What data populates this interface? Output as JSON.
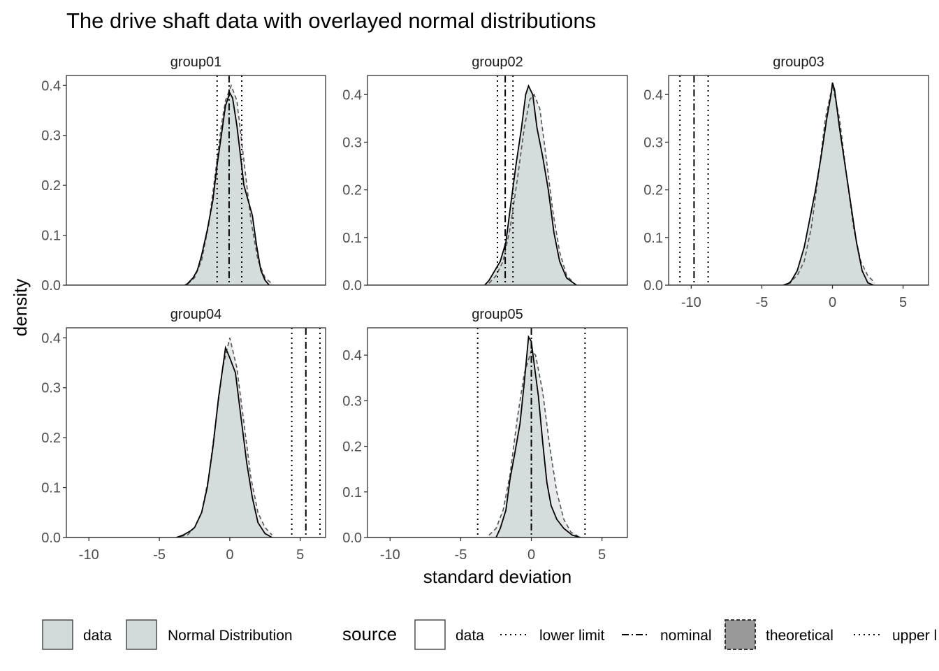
{
  "chart_data": {
    "type": "area",
    "title": "The drive shaft data with overlayed normal distributions",
    "xlabel": "standard deviation",
    "ylabel": "density",
    "xlim": [
      -11.6,
      6.8
    ],
    "x_ticks": [
      -10,
      -5,
      0,
      5
    ],
    "grid": false,
    "legend_position": "bottom",
    "colors": {
      "fill": "#d1d9d9",
      "data_line": "#000000",
      "theoretical_line": "#555555",
      "theoretical_fill": "#999999",
      "panel_border": "#333333",
      "tick_text": "#4d4d4d"
    },
    "panels": [
      {
        "name": "group01",
        "ylim": [
          0,
          0.42
        ],
        "y_ticks": [
          0.0,
          0.1,
          0.2,
          0.3,
          0.4
        ],
        "y_tick_labels": [
          "0.0",
          "0.1",
          "0.2",
          "0.3",
          "0.4"
        ],
        "lower_limit": -0.9,
        "nominal": -0.05,
        "upper_limit": 0.85,
        "data_curve": [
          [
            -3.2,
            0
          ],
          [
            -3.0,
            0.003
          ],
          [
            -2.6,
            0.015
          ],
          [
            -2.3,
            0.03
          ],
          [
            -2.0,
            0.06
          ],
          [
            -1.6,
            0.11
          ],
          [
            -1.2,
            0.17
          ],
          [
            -0.9,
            0.24
          ],
          [
            -0.6,
            0.3
          ],
          [
            -0.3,
            0.36
          ],
          [
            0,
            0.385
          ],
          [
            0.2,
            0.375
          ],
          [
            0.5,
            0.32
          ],
          [
            0.8,
            0.25
          ],
          [
            1.0,
            0.2
          ],
          [
            1.3,
            0.17
          ],
          [
            1.6,
            0.14
          ],
          [
            1.9,
            0.08
          ],
          [
            2.2,
            0.03
          ],
          [
            2.5,
            0.01
          ],
          [
            2.8,
            0.0
          ]
        ],
        "theoretical_curve": [
          [
            -3.0,
            0.002
          ],
          [
            -2.5,
            0.015
          ],
          [
            -2.0,
            0.05
          ],
          [
            -1.5,
            0.12
          ],
          [
            -1.0,
            0.23
          ],
          [
            -0.6,
            0.32
          ],
          [
            -0.3,
            0.37
          ],
          [
            0.1,
            0.4
          ],
          [
            0.5,
            0.37
          ],
          [
            1.0,
            0.25
          ],
          [
            1.5,
            0.13
          ],
          [
            2.0,
            0.05
          ],
          [
            2.5,
            0.015
          ],
          [
            3.0,
            0.003
          ]
        ]
      },
      {
        "name": "group02",
        "ylim": [
          0,
          0.44
        ],
        "y_ticks": [
          0.0,
          0.1,
          0.2,
          0.3,
          0.4
        ],
        "y_tick_labels": [
          "0.0",
          "0.1",
          "0.2",
          "0.3",
          "0.4"
        ],
        "lower_limit": -2.4,
        "nominal": -1.85,
        "upper_limit": -1.3,
        "data_curve": [
          [
            -3.3,
            0
          ],
          [
            -3.0,
            0.01
          ],
          [
            -2.6,
            0.03
          ],
          [
            -2.2,
            0.05
          ],
          [
            -1.8,
            0.09
          ],
          [
            -1.5,
            0.16
          ],
          [
            -1.1,
            0.25
          ],
          [
            -0.7,
            0.33
          ],
          [
            -0.4,
            0.4
          ],
          [
            -0.2,
            0.418
          ],
          [
            0.1,
            0.4
          ],
          [
            0.4,
            0.33
          ],
          [
            0.8,
            0.27
          ],
          [
            1.2,
            0.2
          ],
          [
            1.6,
            0.11
          ],
          [
            2.0,
            0.05
          ],
          [
            2.5,
            0.015
          ],
          [
            3.2,
            0.0
          ]
        ],
        "theoretical_curve": [
          [
            -3.0,
            0.004
          ],
          [
            -2.5,
            0.02
          ],
          [
            -2.0,
            0.05
          ],
          [
            -1.5,
            0.12
          ],
          [
            -1.0,
            0.22
          ],
          [
            -0.5,
            0.33
          ],
          [
            -0.1,
            0.39
          ],
          [
            0.2,
            0.4
          ],
          [
            0.6,
            0.37
          ],
          [
            1.0,
            0.28
          ],
          [
            1.5,
            0.16
          ],
          [
            2.0,
            0.07
          ],
          [
            2.5,
            0.02
          ],
          [
            3.0,
            0.005
          ]
        ]
      },
      {
        "name": "group03",
        "ylim": [
          0,
          0.44
        ],
        "y_ticks": [
          0.0,
          0.1,
          0.2,
          0.3,
          0.4
        ],
        "y_tick_labels": [
          "0.0",
          "0.1",
          "0.2",
          "0.3",
          "0.4"
        ],
        "lower_limit": -10.8,
        "nominal": -9.8,
        "upper_limit": -8.8,
        "data_curve": [
          [
            -3.5,
            0
          ],
          [
            -3.0,
            0.005
          ],
          [
            -2.5,
            0.03
          ],
          [
            -2.0,
            0.08
          ],
          [
            -1.6,
            0.14
          ],
          [
            -1.2,
            0.2
          ],
          [
            -0.8,
            0.27
          ],
          [
            -0.4,
            0.35
          ],
          [
            -0.1,
            0.4
          ],
          [
            0,
            0.425
          ],
          [
            0.15,
            0.41
          ],
          [
            0.5,
            0.33
          ],
          [
            0.9,
            0.25
          ],
          [
            1.3,
            0.17
          ],
          [
            1.7,
            0.09
          ],
          [
            2.1,
            0.03
          ],
          [
            2.5,
            0.005
          ],
          [
            2.9,
            0.0
          ]
        ],
        "theoretical_curve": [
          [
            -3.2,
            0.002
          ],
          [
            -2.5,
            0.02
          ],
          [
            -2.0,
            0.05
          ],
          [
            -1.5,
            0.12
          ],
          [
            -1.0,
            0.23
          ],
          [
            -0.5,
            0.35
          ],
          [
            0,
            0.42
          ],
          [
            0.5,
            0.35
          ],
          [
            1.0,
            0.23
          ],
          [
            1.5,
            0.12
          ],
          [
            2.0,
            0.05
          ],
          [
            2.5,
            0.02
          ],
          [
            3.0,
            0.005
          ]
        ]
      },
      {
        "name": "group04",
        "ylim": [
          0,
          0.42
        ],
        "y_ticks": [
          0.0,
          0.1,
          0.2,
          0.3,
          0.4
        ],
        "y_tick_labels": [
          "0.0",
          "0.1",
          "0.2",
          "0.3",
          "0.4"
        ],
        "lower_limit": 4.4,
        "nominal": 5.4,
        "upper_limit": 6.4,
        "data_curve": [
          [
            -3.8,
            0
          ],
          [
            -3.3,
            0.005
          ],
          [
            -2.8,
            0.013
          ],
          [
            -2.5,
            0.02
          ],
          [
            -2.0,
            0.05
          ],
          [
            -1.6,
            0.1
          ],
          [
            -1.2,
            0.18
          ],
          [
            -0.8,
            0.28
          ],
          [
            -0.4,
            0.36
          ],
          [
            -0.3,
            0.38
          ],
          [
            0,
            0.36
          ],
          [
            0.4,
            0.33
          ],
          [
            0.8,
            0.24
          ],
          [
            1.2,
            0.15
          ],
          [
            1.6,
            0.08
          ],
          [
            2.0,
            0.03
          ],
          [
            2.5,
            0.008
          ],
          [
            3.0,
            0.0
          ]
        ],
        "theoretical_curve": [
          [
            -3.5,
            0.002
          ],
          [
            -3.0,
            0.005
          ],
          [
            -2.5,
            0.02
          ],
          [
            -2.0,
            0.05
          ],
          [
            -1.5,
            0.12
          ],
          [
            -1.0,
            0.23
          ],
          [
            -0.5,
            0.34
          ],
          [
            0,
            0.4
          ],
          [
            0.5,
            0.34
          ],
          [
            1.0,
            0.23
          ],
          [
            1.5,
            0.12
          ],
          [
            2.0,
            0.05
          ],
          [
            2.5,
            0.02
          ],
          [
            3.0,
            0.005
          ]
        ]
      },
      {
        "name": "group05",
        "ylim": [
          0,
          0.46
        ],
        "y_ticks": [
          0.0,
          0.1,
          0.2,
          0.3,
          0.4
        ],
        "y_tick_labels": [
          "0.0",
          "0.1",
          "0.2",
          "0.3",
          "0.4"
        ],
        "lower_limit": -3.8,
        "nominal": 0.0,
        "upper_limit": 3.8,
        "data_curve": [
          [
            -2.5,
            0
          ],
          [
            -2.2,
            0.02
          ],
          [
            -1.8,
            0.06
          ],
          [
            -1.5,
            0.13
          ],
          [
            -1.2,
            0.18
          ],
          [
            -0.8,
            0.25
          ],
          [
            -0.5,
            0.34
          ],
          [
            -0.2,
            0.44
          ],
          [
            0,
            0.43
          ],
          [
            0.2,
            0.38
          ],
          [
            0.5,
            0.31
          ],
          [
            0.8,
            0.21
          ],
          [
            1.1,
            0.12
          ],
          [
            1.4,
            0.07
          ],
          [
            1.8,
            0.04
          ],
          [
            2.3,
            0.02
          ],
          [
            2.9,
            0.005
          ],
          [
            3.5,
            0.0
          ]
        ],
        "theoretical_curve": [
          [
            -3.0,
            0.005
          ],
          [
            -2.5,
            0.02
          ],
          [
            -2.0,
            0.06
          ],
          [
            -1.5,
            0.14
          ],
          [
            -1.0,
            0.26
          ],
          [
            -0.5,
            0.36
          ],
          [
            0,
            0.41
          ],
          [
            0.3,
            0.4
          ],
          [
            0.8,
            0.32
          ],
          [
            1.3,
            0.2
          ],
          [
            1.8,
            0.1
          ],
          [
            2.3,
            0.04
          ],
          [
            2.8,
            0.012
          ],
          [
            3.3,
            0.003
          ]
        ]
      }
    ],
    "legend": {
      "fill_entries": [
        "data",
        "Normal Distribution"
      ],
      "source_title": "source",
      "source_entries": [
        {
          "label": "data",
          "key": "box-solid"
        },
        {
          "label": "lower limit",
          "key": "dotted"
        },
        {
          "label": "nominal",
          "key": "dotdash"
        },
        {
          "label": "theoretical",
          "key": "box-dashed"
        },
        {
          "label": "upper l",
          "key": "dotted"
        }
      ]
    }
  }
}
